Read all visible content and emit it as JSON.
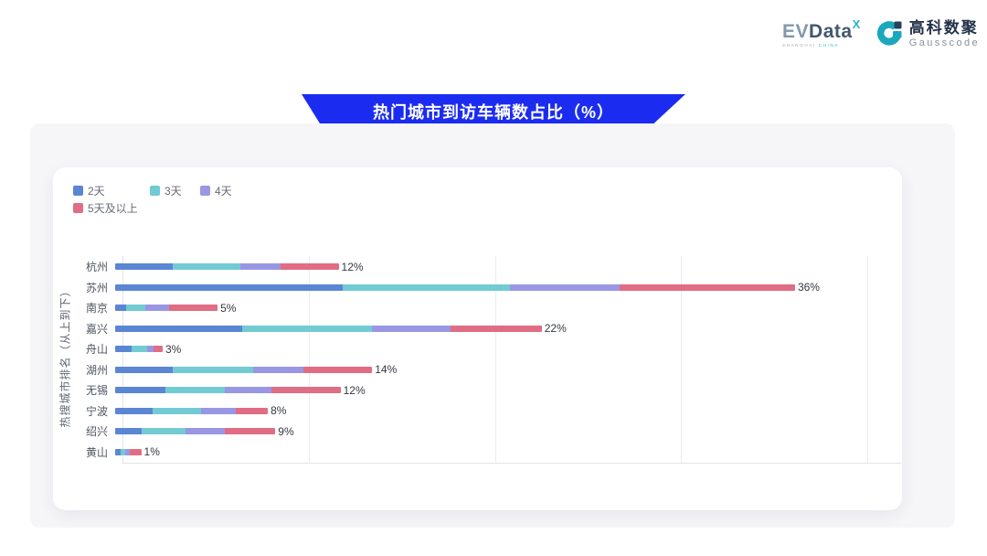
{
  "header": {
    "evdata": {
      "ev": "EV",
      "data": "Data",
      "sup": "X",
      "subtext_left": "SHANGHAI ",
      "subtext_right": "CHINA"
    },
    "gausscode": {
      "cn": "高科数聚",
      "en": "Gausscode"
    }
  },
  "banner": {
    "title": "热门城市到访车辆数占比（%）"
  },
  "colors": {
    "banner_blue": "#1b2cf0",
    "day2": "#5a86d3",
    "day3": "#72cbd3",
    "day4": "#9997e3",
    "day5plus": "#e06d83",
    "grid": "#ececf1",
    "teal_logo": "#1ba8bd",
    "navy_logo": "#29405e"
  },
  "chart_data": {
    "type": "bar",
    "orientation": "horizontal",
    "stacked": true,
    "title": "热门城市到访车辆数占比（%）",
    "xlabel": "",
    "ylabel": "热搜城市排名（从上到下）",
    "xlim": [
      0,
      41.8
    ],
    "gridlines_pct": [
      10,
      20,
      30,
      40
    ],
    "grid": true,
    "legend_position": "top-left",
    "unit": "%",
    "categories": [
      "杭州",
      "苏州",
      "南京",
      "嘉兴",
      "舟山",
      "湖州",
      "无锡",
      "宁波",
      "绍兴",
      "黄山"
    ],
    "series": [
      {
        "name": "2天",
        "color": "#5a86d3",
        "values": [
          3.1,
          12.2,
          0.6,
          6.8,
          0.9,
          3.1,
          2.7,
          2.0,
          1.4,
          0.3
        ]
      },
      {
        "name": "3天",
        "color": "#72cbd3",
        "values": [
          3.6,
          9.0,
          1.0,
          7.0,
          0.8,
          4.3,
          3.2,
          2.6,
          2.4,
          0.25
        ]
      },
      {
        "name": "4天",
        "color": "#9997e3",
        "values": [
          2.2,
          5.9,
          1.3,
          4.2,
          0.35,
          2.7,
          2.5,
          1.9,
          2.1,
          0.25
        ]
      },
      {
        "name": "5天及以上",
        "color": "#e06d83",
        "values": [
          3.1,
          9.4,
          2.6,
          4.9,
          0.5,
          3.7,
          3.7,
          1.7,
          2.7,
          0.6
        ]
      }
    ],
    "total_labels": [
      "12%",
      "36%",
      "5%",
      "22%",
      "3%",
      "14%",
      "12%",
      "8%",
      "9%",
      "1%"
    ]
  }
}
